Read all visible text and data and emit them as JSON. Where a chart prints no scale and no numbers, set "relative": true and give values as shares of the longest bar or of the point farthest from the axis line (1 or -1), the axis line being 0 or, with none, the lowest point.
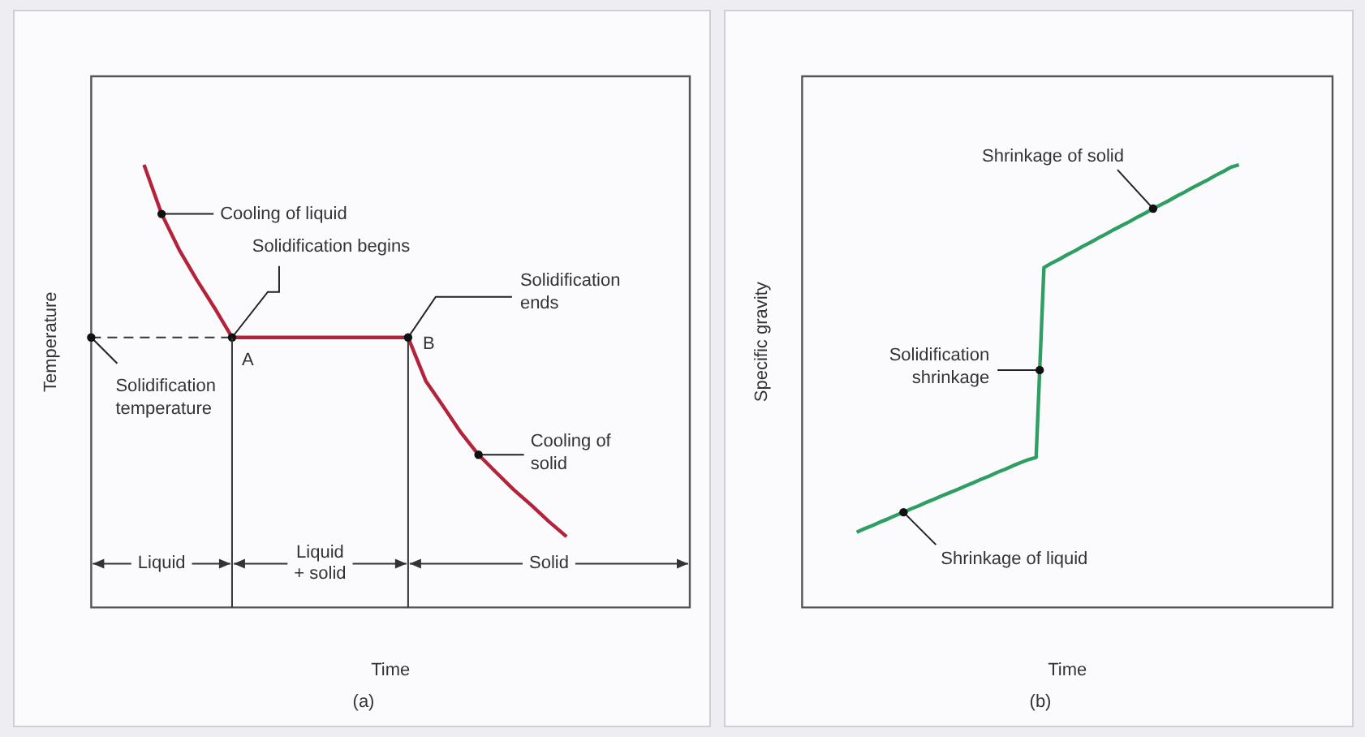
{
  "chart_data": [
    {
      "type": "line",
      "title": "(a)",
      "xlabel": "Time",
      "ylabel": "Temperature",
      "relative": true,
      "categories": [
        null,
        null,
        null,
        null,
        null,
        null,
        null,
        null,
        null,
        null,
        null,
        null,
        null,
        null,
        null,
        null,
        null,
        null,
        null,
        null,
        null,
        null,
        null,
        null,
        null,
        null,
        null,
        null,
        null,
        null,
        null,
        null,
        null,
        null,
        null
      ],
      "series": [
        {
          "color": "#b3243a",
          "values": [
            null,
            null,
            null,
            1,
            0.889,
            0.808,
            0.74,
            0.677,
            0.61,
            0.61,
            0.61,
            0.61,
            0.61,
            0.61,
            0.61,
            0.61,
            0.61,
            0.61,
            0.61,
            0.512,
            0.454,
            0.395,
            0.345,
            0.305,
            0.266,
            0.231,
            0.194,
            0.16,
            null,
            null,
            null,
            null,
            null,
            null,
            null
          ]
        }
      ],
      "ref_lines": [
        {
          "axis": "y",
          "value": 0.61,
          "color": "#333333",
          "line_style": "dashed"
        }
      ],
      "annotations": [
        "Cooling of liquid",
        "Solidification begins",
        "A",
        "B",
        "Solidification ends",
        "Cooling of solid",
        "Solidification temperature",
        "Liquid",
        "Liquid + solid",
        "Solid"
      ]
    },
    {
      "type": "line",
      "title": "(b)",
      "xlabel": "Time",
      "ylabel": "Specific gravity",
      "relative": true,
      "categories": [
        null,
        null,
        null,
        null,
        null,
        null,
        null,
        null,
        null,
        null,
        null,
        null,
        null,
        null,
        null,
        null,
        null,
        null,
        null,
        null,
        null,
        null,
        null,
        null,
        null,
        null,
        null,
        null,
        null,
        null,
        null,
        null,
        null,
        null,
        null,
        null,
        null,
        null,
        null,
        null,
        null,
        null,
        null,
        null,
        null,
        null,
        null,
        null,
        null,
        null,
        null,
        null,
        null,
        null,
        null,
        null,
        null,
        null,
        null,
        null,
        null,
        null,
        null,
        null,
        null,
        null,
        null,
        null,
        null
      ],
      "series": [
        {
          "color": "#2e9e62",
          "values": [
            null,
            null,
            null,
            null,
            null,
            null,
            null,
            0.17,
            0.178,
            0.185,
            0.193,
            0.2,
            0.208,
            0.215,
            0.223,
            0.23,
            0.238,
            0.245,
            0.253,
            0.26,
            0.267,
            0.275,
            0.282,
            0.29,
            0.297,
            0.305,
            0.312,
            0.32,
            0.327,
            0.334,
            0.339,
            0.768,
            0.778,
            0.787,
            0.797,
            0.806,
            0.816,
            0.825,
            0.835,
            0.844,
            0.854,
            0.863,
            0.872,
            0.882,
            0.891,
            0.901,
            0.91,
            0.919,
            0.929,
            0.938,
            0.948,
            0.957,
            0.966,
            0.976,
            0.985,
            0.995,
            1,
            null,
            null,
            null,
            null,
            null,
            null,
            null,
            null,
            null,
            null,
            null,
            null
          ]
        }
      ],
      "annotations": [
        "Shrinkage of liquid",
        "Solidification shrinkage",
        "Shrinkage of solid"
      ]
    }
  ]
}
